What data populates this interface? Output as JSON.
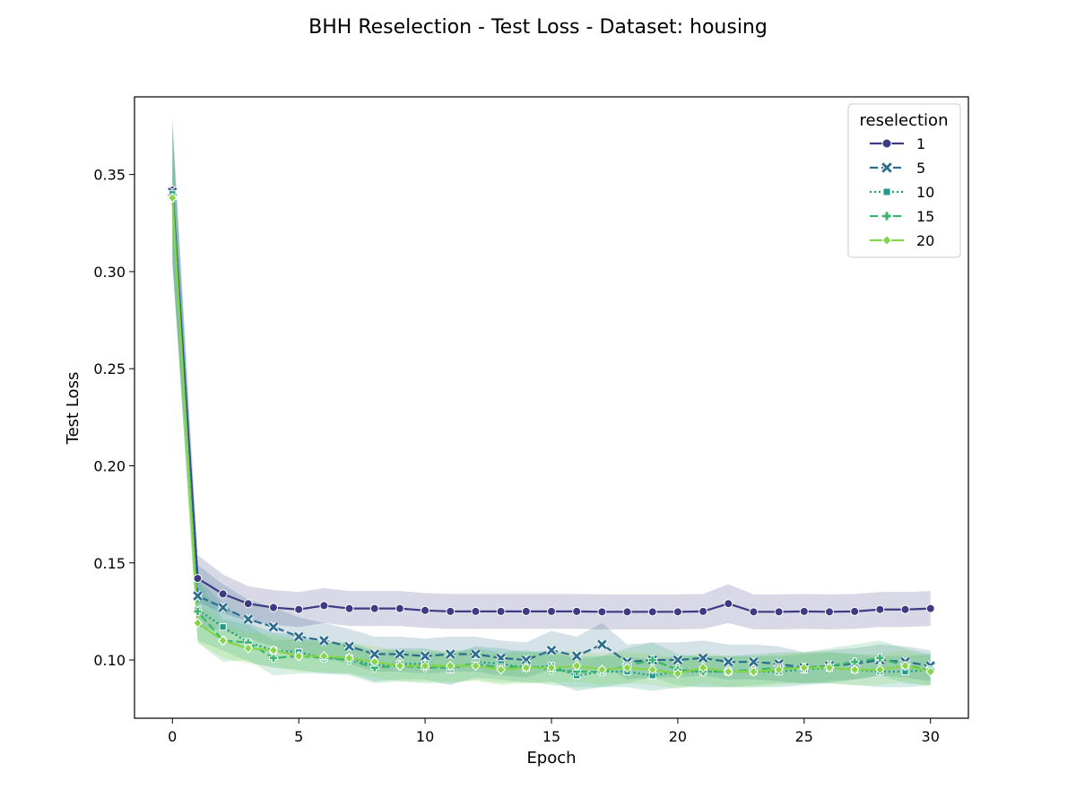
{
  "chart_data": {
    "type": "line",
    "title": "BHH Reselection - Test Loss - Dataset: housing",
    "xlabel": "Epoch",
    "ylabel": "Test Loss",
    "xlim": [
      -1.5,
      31.5
    ],
    "ylim": [
      0.07,
      0.39
    ],
    "xticks": [
      0,
      5,
      10,
      15,
      20,
      25,
      30
    ],
    "yticks": [
      0.1,
      0.15,
      0.2,
      0.25,
      0.3,
      0.35
    ],
    "ytick_labels": [
      "0.10",
      "0.15",
      "0.20",
      "0.25",
      "0.30",
      "0.35"
    ],
    "legend": {
      "title": "reselection",
      "placement": "top-right"
    },
    "x": [
      0,
      1,
      2,
      3,
      4,
      5,
      6,
      7,
      8,
      9,
      10,
      11,
      12,
      13,
      14,
      15,
      16,
      17,
      18,
      19,
      20,
      21,
      22,
      23,
      24,
      25,
      26,
      27,
      28,
      29,
      30
    ],
    "series": [
      {
        "name": "1",
        "color": "#3e3b84",
        "dash": "solid",
        "marker": "circle",
        "values": [
          0.342,
          0.142,
          0.134,
          0.129,
          0.127,
          0.126,
          0.128,
          0.1265,
          0.1265,
          0.1265,
          0.1255,
          0.125,
          0.125,
          0.125,
          0.125,
          0.125,
          0.125,
          0.1248,
          0.1248,
          0.1248,
          0.1248,
          0.125,
          0.129,
          0.1248,
          0.1248,
          0.125,
          0.1248,
          0.125,
          0.126,
          0.126,
          0.1265
        ],
        "band_halfwidth": [
          0.038,
          0.012,
          0.01,
          0.009,
          0.009,
          0.009,
          0.009,
          0.009,
          0.009,
          0.009,
          0.009,
          0.009,
          0.009,
          0.009,
          0.009,
          0.009,
          0.009,
          0.009,
          0.009,
          0.009,
          0.009,
          0.009,
          0.01,
          0.009,
          0.009,
          0.009,
          0.009,
          0.009,
          0.009,
          0.009,
          0.009
        ]
      },
      {
        "name": "5",
        "color": "#2d6e8e",
        "dash": "dashed",
        "marker": "x",
        "values": [
          0.341,
          0.133,
          0.127,
          0.121,
          0.117,
          0.112,
          0.11,
          0.107,
          0.103,
          0.103,
          0.102,
          0.103,
          0.103,
          0.101,
          0.1,
          0.105,
          0.102,
          0.108,
          0.099,
          0.1,
          0.1,
          0.101,
          0.099,
          0.099,
          0.098,
          0.096,
          0.097,
          0.098,
          0.1,
          0.099,
          0.097
        ],
        "band_halfwidth": [
          0.035,
          0.016,
          0.012,
          0.01,
          0.01,
          0.01,
          0.009,
          0.009,
          0.009,
          0.009,
          0.009,
          0.009,
          0.009,
          0.009,
          0.009,
          0.01,
          0.01,
          0.011,
          0.009,
          0.009,
          0.009,
          0.009,
          0.009,
          0.009,
          0.009,
          0.008,
          0.008,
          0.008,
          0.008,
          0.008,
          0.008
        ]
      },
      {
        "name": "10",
        "color": "#1f9a8a",
        "dash": "dotted",
        "marker": "square",
        "values": [
          0.34,
          0.126,
          0.117,
          0.109,
          0.105,
          0.104,
          0.101,
          0.101,
          0.097,
          0.098,
          0.098,
          0.095,
          0.099,
          0.098,
          0.096,
          0.097,
          0.092,
          0.094,
          0.094,
          0.092,
          0.094,
          0.094,
          0.094,
          0.094,
          0.094,
          0.095,
          0.096,
          0.095,
          0.094,
          0.094,
          0.095
        ],
        "band_halfwidth": [
          0.034,
          0.016,
          0.012,
          0.01,
          0.009,
          0.009,
          0.008,
          0.008,
          0.008,
          0.008,
          0.008,
          0.008,
          0.008,
          0.008,
          0.008,
          0.008,
          0.008,
          0.008,
          0.008,
          0.008,
          0.008,
          0.008,
          0.008,
          0.008,
          0.008,
          0.008,
          0.008,
          0.008,
          0.008,
          0.008,
          0.008
        ]
      },
      {
        "name": "15",
        "color": "#3bb56e",
        "dash": "dashed",
        "marker": "plus",
        "values": [
          0.338,
          0.125,
          0.11,
          0.109,
          0.101,
          0.102,
          0.101,
          0.1,
          0.096,
          0.097,
          0.096,
          0.096,
          0.098,
          0.096,
          0.097,
          0.095,
          0.094,
          0.094,
          0.097,
          0.1,
          0.095,
          0.094,
          0.094,
          0.095,
          0.096,
          0.096,
          0.097,
          0.099,
          0.101,
          0.097,
          0.095
        ],
        "band_halfwidth": [
          0.034,
          0.016,
          0.011,
          0.009,
          0.009,
          0.009,
          0.008,
          0.008,
          0.008,
          0.008,
          0.008,
          0.008,
          0.008,
          0.008,
          0.008,
          0.008,
          0.008,
          0.008,
          0.009,
          0.009,
          0.008,
          0.008,
          0.008,
          0.008,
          0.008,
          0.008,
          0.009,
          0.009,
          0.009,
          0.009,
          0.008
        ]
      },
      {
        "name": "20",
        "color": "#86d549",
        "dash": "solid",
        "marker": "diamond",
        "values": [
          0.338,
          0.119,
          0.11,
          0.106,
          0.105,
          0.102,
          0.102,
          0.101,
          0.099,
          0.097,
          0.097,
          0.097,
          0.097,
          0.095,
          0.096,
          0.096,
          0.097,
          0.095,
          0.096,
          0.095,
          0.093,
          0.096,
          0.094,
          0.094,
          0.095,
          0.096,
          0.096,
          0.095,
          0.095,
          0.097,
          0.094
        ],
        "band_halfwidth": [
          0.03,
          0.01,
          0.009,
          0.008,
          0.008,
          0.008,
          0.008,
          0.008,
          0.008,
          0.008,
          0.008,
          0.008,
          0.008,
          0.008,
          0.008,
          0.008,
          0.008,
          0.008,
          0.008,
          0.008,
          0.008,
          0.008,
          0.008,
          0.008,
          0.008,
          0.008,
          0.008,
          0.008,
          0.008,
          0.008,
          0.008
        ]
      }
    ]
  }
}
